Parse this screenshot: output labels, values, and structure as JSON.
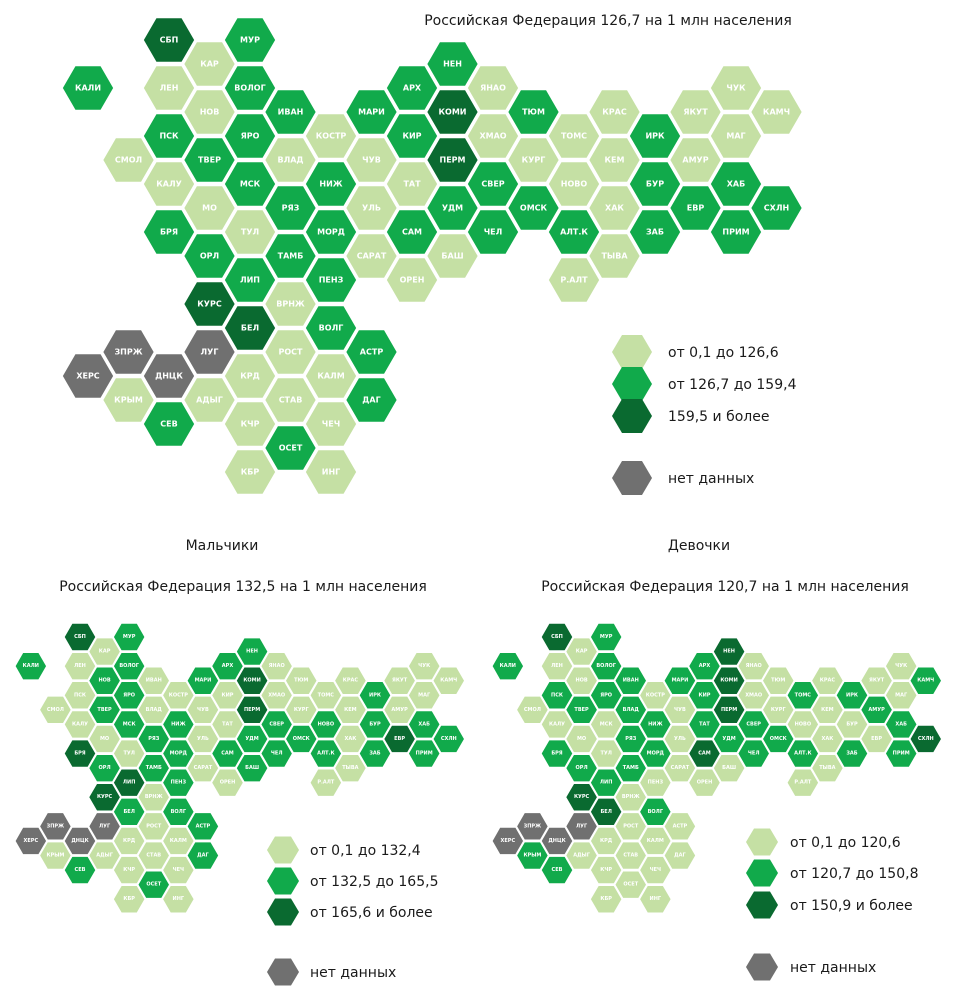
{
  "colors": {
    "low": "#c5e0a4",
    "mid": "#11aa4b",
    "high": "#0a6a30",
    "na": "#707070"
  },
  "maps": [
    {
      "title": "Российская Федерация 126,7 на 1 млн населения",
      "legend": [
        "от 0,1 до 126,6",
        "от 126,7 до 159,4",
        "159,5 и более",
        "нет данных"
      ],
      "regions": {
        "КАЛИ": "mid",
        "СМОЛ": "low",
        "СБП": "high",
        "ЛЕН": "low",
        "ПСК": "mid",
        "КАЛУ": "low",
        "БРЯ": "mid",
        "КАР": "low",
        "НОВ": "low",
        "ТВЕР": "mid",
        "МО": "low",
        "ОРЛ": "mid",
        "КУРС": "high",
        "МУР": "mid",
        "ВОЛОГ": "mid",
        "ЯРО": "mid",
        "МСК": "mid",
        "ТУЛ": "low",
        "ЛИП": "mid",
        "БЕЛ": "high",
        "КРД": "low",
        "КЧР": "low",
        "КБР": "low",
        "ИВАН": "mid",
        "ВЛАД": "low",
        "РЯЗ": "mid",
        "ТАМБ": "mid",
        "ВРНЖ": "low",
        "РОСТ": "low",
        "СТАВ": "low",
        "ОСЕТ": "mid",
        "КОСТР": "low",
        "НИЖ": "mid",
        "МОРД": "mid",
        "ПЕНЗ": "mid",
        "ВОЛГ": "mid",
        "КАЛМ": "low",
        "ЧЕЧ": "low",
        "ИНГ": "low",
        "МАРИ": "mid",
        "ЧУВ": "low",
        "УЛЬ": "low",
        "САРАТ": "low",
        "АСТР": "mid",
        "ДАГ": "mid",
        "АРХ": "mid",
        "КИР": "mid",
        "ТАТ": "low",
        "САМ": "mid",
        "ОРЕН": "low",
        "НЕН": "mid",
        "КОМИ": "high",
        "ПЕРМ": "high",
        "УДМ": "mid",
        "БАШ": "low",
        "ЯНАО": "low",
        "ХМАО": "low",
        "СВЕР": "mid",
        "ЧЕЛ": "mid",
        "ТЮМ": "mid",
        "КУРГ": "low",
        "ОМСК": "mid",
        "ТОМС": "low",
        "НОВО": "low",
        "АЛТ.К": "mid",
        "Р.АЛТ": "low",
        "КРАС": "low",
        "КЕМ": "low",
        "ХАК": "low",
        "ТЫВА": "low",
        "ИРК": "mid",
        "БУР": "mid",
        "ЗАБ": "mid",
        "ЯКУТ": "low",
        "АМУР": "low",
        "ЕВР": "mid",
        "ЧУК": "low",
        "МАГ": "low",
        "ХАБ": "mid",
        "ПРИМ": "mid",
        "КАМЧ": "low",
        "СХЛН": "mid",
        "ХЕРС": "na",
        "ЗПРЖ": "na",
        "ДНЦК": "na",
        "ЛУГ": "na",
        "КРЫМ": "low",
        "СЕВ": "mid",
        "АДЫГ": "low"
      }
    },
    {
      "heading": "Мальчики",
      "title": "Российская Федерация 132,5 на 1 млн населения",
      "legend": [
        "от 0,1 до 132,4",
        "от 132,5 до 165,5",
        "от 165,6 и более",
        "нет данных"
      ],
      "regions": {
        "КАЛИ": "mid",
        "СМОЛ": "low",
        "СБП": "high",
        "ЛЕН": "low",
        "ПСК": "low",
        "КАЛУ": "low",
        "БРЯ": "high",
        "КАР": "low",
        "НОВ": "mid",
        "ТВЕР": "mid",
        "МО": "low",
        "ОРЛ": "mid",
        "КУРС": "high",
        "МУР": "mid",
        "ВОЛОГ": "mid",
        "ЯРО": "mid",
        "МСК": "mid",
        "ТУЛ": "low",
        "ЛИП": "high",
        "БЕЛ": "mid",
        "КРД": "low",
        "КЧР": "low",
        "КБР": "low",
        "ИВАН": "low",
        "ВЛАД": "low",
        "РЯЗ": "mid",
        "ТАМБ": "mid",
        "ВРНЖ": "low",
        "РОСТ": "low",
        "СТАВ": "low",
        "ОСЕТ": "mid",
        "КОСТР": "low",
        "НИЖ": "mid",
        "МОРД": "mid",
        "ПЕНЗ": "mid",
        "ВОЛГ": "mid",
        "КАЛМ": "low",
        "ЧЕЧ": "low",
        "ИНГ": "low",
        "МАРИ": "mid",
        "ЧУВ": "low",
        "УЛЬ": "low",
        "САРАТ": "low",
        "АСТР": "mid",
        "ДАГ": "mid",
        "АРХ": "mid",
        "КИР": "low",
        "ТАТ": "low",
        "САМ": "mid",
        "ОРЕН": "low",
        "НЕН": "mid",
        "КОМИ": "high",
        "ПЕРМ": "high",
        "УДМ": "mid",
        "БАШ": "mid",
        "ЯНАО": "low",
        "ХМАО": "low",
        "СВЕР": "mid",
        "ЧЕЛ": "mid",
        "ТЮМ": "low",
        "КУРГ": "low",
        "ОМСК": "mid",
        "ТОМС": "low",
        "НОВО": "mid",
        "АЛТ.К": "mid",
        "Р.АЛТ": "low",
        "КРАС": "low",
        "КЕМ": "low",
        "ХАК": "low",
        "ТЫВА": "low",
        "ИРК": "mid",
        "БУР": "mid",
        "ЗАБ": "mid",
        "ЯКУТ": "low",
        "АМУР": "low",
        "ЕВР": "high",
        "ЧУК": "low",
        "МАГ": "low",
        "ХАБ": "mid",
        "ПРИМ": "mid",
        "КАМЧ": "low",
        "СХЛН": "mid",
        "ХЕРС": "na",
        "ЗПРЖ": "na",
        "ДНЦК": "na",
        "ЛУГ": "na",
        "КРЫМ": "low",
        "СЕВ": "mid",
        "АДЫГ": "low"
      }
    },
    {
      "heading": "Девочки",
      "title": "Российская Федерация 120,7 на 1 млн населения",
      "legend": [
        "от 0,1 до 120,6",
        "от 120,7 до 150,8",
        "от 150,9 и более",
        "нет данных"
      ],
      "regions": {
        "КАЛИ": "mid",
        "СМОЛ": "low",
        "СБП": "high",
        "ЛЕН": "low",
        "ПСК": "mid",
        "КАЛУ": "low",
        "БРЯ": "mid",
        "КАР": "low",
        "НОВ": "low",
        "ТВЕР": "mid",
        "МО": "low",
        "ОРЛ": "mid",
        "КУРС": "high",
        "МУР": "mid",
        "ВОЛОГ": "mid",
        "ЯРО": "mid",
        "МСК": "low",
        "ТУЛ": "low",
        "ЛИП": "mid",
        "БЕЛ": "high",
        "КРД": "low",
        "КЧР": "low",
        "КБР": "low",
        "ИВАН": "mid",
        "ВЛАД": "mid",
        "РЯЗ": "mid",
        "ТАМБ": "mid",
        "ВРНЖ": "low",
        "РОСТ": "low",
        "СТАВ": "low",
        "ОСЕТ": "low",
        "КОСТР": "low",
        "НИЖ": "mid",
        "МОРД": "mid",
        "ПЕНЗ": "low",
        "ВОЛГ": "mid",
        "КАЛМ": "low",
        "ЧЕЧ": "low",
        "ИНГ": "low",
        "МАРИ": "mid",
        "ЧУВ": "low",
        "УЛЬ": "low",
        "САРАТ": "low",
        "АСТР": "low",
        "ДАГ": "low",
        "АРХ": "mid",
        "КИР": "mid",
        "ТАТ": "mid",
        "САМ": "high",
        "ОРЕН": "low",
        "НЕН": "high",
        "КОМИ": "high",
        "ПЕРМ": "high",
        "УДМ": "mid",
        "БАШ": "low",
        "ЯНАО": "low",
        "ХМАО": "low",
        "СВЕР": "mid",
        "ЧЕЛ": "mid",
        "ТЮМ": "low",
        "КУРГ": "low",
        "ОМСК": "mid",
        "ТОМС": "mid",
        "НОВО": "low",
        "АЛТ.К": "mid",
        "Р.АЛТ": "low",
        "КРАС": "low",
        "КЕМ": "low",
        "ХАК": "low",
        "ТЫВА": "low",
        "ИРК": "mid",
        "БУР": "low",
        "ЗАБ": "mid",
        "ЯКУТ": "low",
        "АМУР": "mid",
        "ЕВР": "low",
        "ЧУК": "low",
        "МАГ": "low",
        "ХАБ": "mid",
        "ПРИМ": "mid",
        "КАМЧ": "mid",
        "СХЛН": "high",
        "ХЕРС": "na",
        "ЗПРЖ": "na",
        "ДНЦК": "na",
        "ЛУГ": "na",
        "КРЫМ": "mid",
        "СЕВ": "mid",
        "АДЫГ": "low"
      }
    }
  ]
}
